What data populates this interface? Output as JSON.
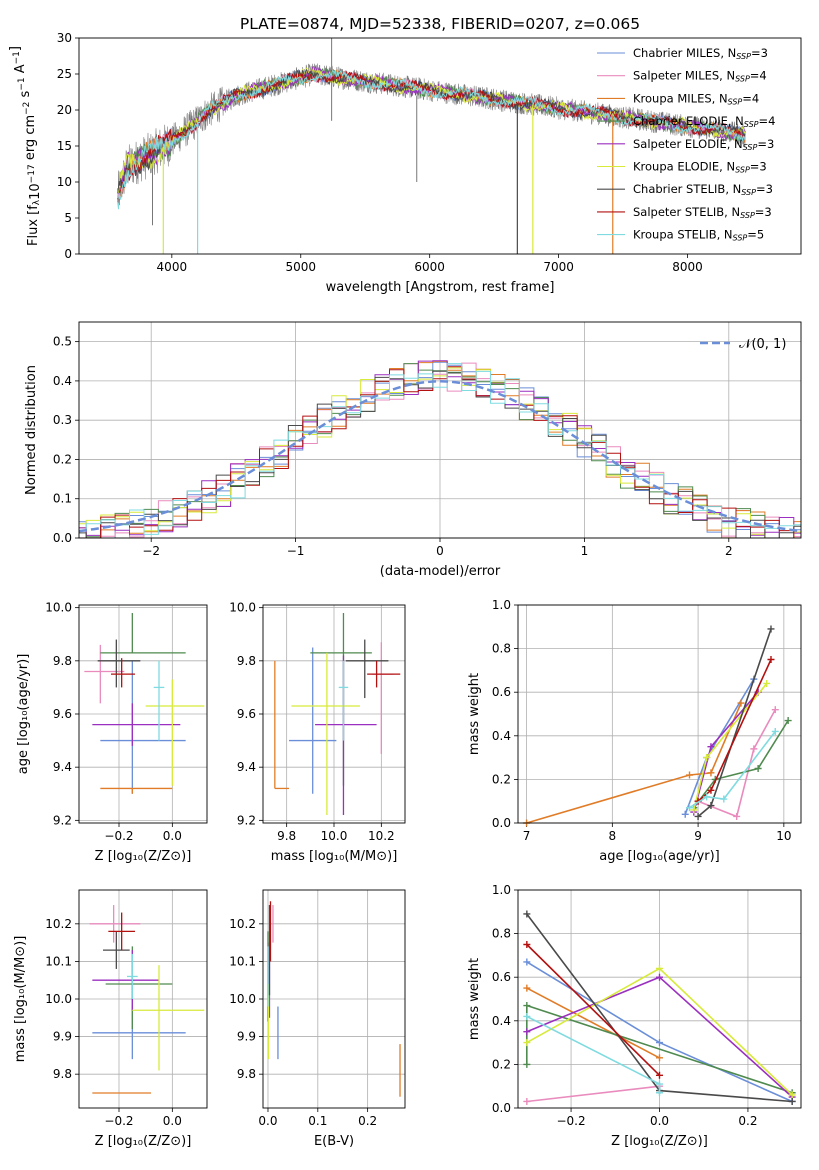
{
  "colors": {
    "Chabrier MILES": "#6a8ed8",
    "Salpeter MILES": "#e98bbd",
    "Kroupa MILES": "#e07c27",
    "Chabrier ELODIE": "#4f8a4f",
    "Salpeter ELODIE": "#9b2fbf",
    "Kroupa ELODIE": "#d8ea3a",
    "Chabrier STELIB": "#4a4a4a",
    "Salpeter STELIB": "#b31010",
    "Kroupa STELIB": "#7fdbe0"
  },
  "chart_data": [
    {
      "id": "spectrum",
      "type": "line",
      "title": "PLATE=0874, MJD=52338, FIBERID=0207, z=0.065",
      "xlabel": "wavelength [Angstrom, rest frame]",
      "ylabel": "Flux [fλ10⁻¹⁷ erg cm⁻² s⁻¹ A⁻¹]",
      "xlim": [
        3280,
        8880
      ],
      "ylim": [
        0,
        30
      ],
      "xticks": [
        4000,
        5000,
        6000,
        7000,
        8000
      ],
      "yticks": [
        0,
        5,
        10,
        15,
        20,
        25,
        30
      ],
      "legend_position": "top-right",
      "legend": [
        {
          "model": "Chabrier MILES",
          "label": "Chabrier MILES, N",
          "sub": "SSP",
          "n": "=3"
        },
        {
          "model": "Salpeter MILES",
          "label": "Salpeter MILES, N",
          "sub": "SSP",
          "n": "=4"
        },
        {
          "model": "Kroupa MILES",
          "label": "Kroupa MILES, N",
          "sub": "SSP",
          "n": "=4"
        },
        {
          "model": "Chabrier ELODIE",
          "label": "Chabrier ELODIE, N",
          "sub": "SSP",
          "n": "=4"
        },
        {
          "model": "Salpeter ELODIE",
          "label": "Salpeter ELODIE, N",
          "sub": "SSP",
          "n": "=3"
        },
        {
          "model": "Kroupa ELODIE",
          "label": "Kroupa ELODIE, N",
          "sub": "SSP",
          "n": "=3"
        },
        {
          "model": "Chabrier STELIB",
          "label": "Chabrier STELIB, N",
          "sub": "SSP",
          "n": "=3"
        },
        {
          "model": "Salpeter STELIB",
          "label": "Salpeter STELIB, N",
          "sub": "SSP",
          "n": "=3"
        },
        {
          "model": "Kroupa STELIB",
          "label": "Kroupa STELIB, N",
          "sub": "SSP",
          "n": "=5"
        }
      ],
      "continuum": [
        [
          3580,
          8
        ],
        [
          3650,
          12
        ],
        [
          3750,
          13
        ],
        [
          3850,
          14
        ],
        [
          3950,
          15
        ],
        [
          4100,
          17
        ],
        [
          4300,
          20
        ],
        [
          4500,
          22
        ],
        [
          4700,
          23
        ],
        [
          4900,
          24
        ],
        [
          5100,
          25
        ],
        [
          5300,
          24.5
        ],
        [
          5500,
          24
        ],
        [
          5700,
          23.5
        ],
        [
          5900,
          23
        ],
        [
          6100,
          22.5
        ],
        [
          6300,
          22
        ],
        [
          6500,
          21.5
        ],
        [
          6700,
          21
        ],
        [
          6900,
          20.5
        ],
        [
          7100,
          20
        ],
        [
          7300,
          19.5
        ],
        [
          7500,
          19
        ],
        [
          7700,
          18.5
        ],
        [
          7900,
          18
        ],
        [
          8100,
          17.5
        ],
        [
          8300,
          17
        ],
        [
          8450,
          16.5
        ]
      ],
      "dips": [
        {
          "x": 3934,
          "y": 0,
          "model": "Kroupa ELODIE"
        },
        {
          "x": 4200,
          "y": 0,
          "model": "Kroupa STELIB"
        },
        {
          "x": 6680,
          "y": 0,
          "model": "Chabrier STELIB"
        },
        {
          "x": 6800,
          "y": 0,
          "model": "Kroupa ELODIE"
        },
        {
          "x": 7420,
          "y": 0,
          "model": "Kroupa MILES"
        }
      ]
    },
    {
      "id": "residuals",
      "type": "histogram",
      "xlabel": "(data-model)/error",
      "ylabel": "Normed distribution",
      "xlim": [
        -2.5,
        2.5
      ],
      "ylim": [
        0,
        0.55
      ],
      "xticks": [
        -2,
        -1,
        0,
        1,
        2
      ],
      "yticks": [
        0.0,
        0.1,
        0.2,
        0.3,
        0.4,
        0.5
      ],
      "legend": "𝒩(0, 1)",
      "legend_position": "top-right",
      "reference_curve": {
        "mean": 0,
        "sigma": 1,
        "style": "dashed"
      },
      "bin_width": 0.1
    },
    {
      "id": "age-vs-Z",
      "type": "errorbar",
      "xlabel": "Z [log₁₀(Z/Z⊙)]",
      "ylabel": "age  [log₁₀(age/yr)]",
      "xlim": [
        -0.35,
        0.13
      ],
      "ylim": [
        9.19,
        10.01
      ],
      "xticks": [
        -0.2,
        0.0
      ],
      "yticks": [
        9.2,
        9.4,
        9.6,
        9.8,
        10.0
      ],
      "points": [
        {
          "model": "Chabrier MILES",
          "x": -0.15,
          "xerr": [
            0.12,
            0.2
          ],
          "y": 9.5,
          "yerr": [
            0.2,
            0.3
          ]
        },
        {
          "model": "Salpeter MILES",
          "x": -0.27,
          "xerr": [
            0.06,
            0.09
          ],
          "y": 9.76,
          "yerr": [
            0.12,
            0.1
          ]
        },
        {
          "model": "Kroupa MILES",
          "x": -0.15,
          "xerr": [
            0.12,
            0.15
          ],
          "y": 9.32,
          "yerr": [
            0.02,
            0.0
          ]
        },
        {
          "model": "Chabrier ELODIE",
          "x": -0.15,
          "xerr": [
            0.12,
            0.2
          ],
          "y": 9.83,
          "yerr": [
            0.0,
            0.15
          ]
        },
        {
          "model": "Salpeter ELODIE",
          "x": -0.15,
          "xerr": [
            0.15,
            0.18
          ],
          "y": 9.56,
          "yerr": [
            0.08,
            0.08
          ]
        },
        {
          "model": "Kroupa ELODIE",
          "x": 0.0,
          "xerr": [
            0.1,
            0.12
          ],
          "y": 9.63,
          "yerr": [
            0.3,
            0.1
          ]
        },
        {
          "model": "Chabrier STELIB",
          "x": -0.21,
          "xerr": [
            0.07,
            0.09
          ],
          "y": 9.8,
          "yerr": [
            0.1,
            0.08
          ]
        },
        {
          "model": "Salpeter STELIB",
          "x": -0.19,
          "xerr": [
            0.04,
            0.05
          ],
          "y": 9.75,
          "yerr": [
            0.05,
            0.06
          ]
        },
        {
          "model": "Kroupa STELIB",
          "x": -0.05,
          "xerr": [
            0.02,
            0.02
          ],
          "y": 9.7,
          "yerr": [
            0.2,
            0.1
          ]
        }
      ]
    },
    {
      "id": "age-vs-mass",
      "type": "errorbar",
      "xlabel": "mass [log₁₀(M/M⊙)]",
      "ylabel": "",
      "xlim": [
        9.7,
        10.3
      ],
      "ylim": [
        9.19,
        10.01
      ],
      "xticks": [
        9.8,
        10.0,
        10.2
      ],
      "yticks": [
        9.2,
        9.4,
        9.6,
        9.8,
        10.0
      ],
      "points": [
        {
          "model": "Chabrier MILES",
          "x": 9.91,
          "xerr": [
            0.1,
            0.1
          ],
          "y": 9.5,
          "yerr": [
            0.2,
            0.35
          ]
        },
        {
          "model": "Salpeter MILES",
          "x": 10.2,
          "xerr": [
            0.04,
            0.05
          ],
          "y": 9.75,
          "yerr": [
            0.3,
            0.12
          ]
        },
        {
          "model": "Kroupa MILES",
          "x": 9.75,
          "xerr": [
            0.0,
            0.06
          ],
          "y": 9.32,
          "yerr": [
            0.0,
            0.48
          ]
        },
        {
          "model": "Chabrier ELODIE",
          "x": 10.04,
          "xerr": [
            0.14,
            0.12
          ],
          "y": 9.83,
          "yerr": [
            0.5,
            0.15
          ]
        },
        {
          "model": "Salpeter ELODIE",
          "x": 10.04,
          "xerr": [
            0.12,
            0.14
          ],
          "y": 9.56,
          "yerr": [
            0.34,
            0.26
          ]
        },
        {
          "model": "Kroupa ELODIE",
          "x": 9.97,
          "xerr": [
            0.15,
            0.14
          ],
          "y": 9.63,
          "yerr": [
            0.41,
            0.2
          ]
        },
        {
          "model": "Chabrier STELIB",
          "x": 10.13,
          "xerr": [
            0.08,
            0.1
          ],
          "y": 9.8,
          "yerr": [
            0.14,
            0.08
          ]
        },
        {
          "model": "Salpeter STELIB",
          "x": 10.18,
          "xerr": [
            0.04,
            0.1
          ],
          "y": 9.75,
          "yerr": [
            0.05,
            0.05
          ]
        },
        {
          "model": "Kroupa STELIB",
          "x": 10.04,
          "xerr": [
            0.02,
            0.02
          ],
          "y": 9.7,
          "yerr": [
            0.2,
            0.1
          ]
        }
      ]
    },
    {
      "id": "massweight-vs-age",
      "type": "line",
      "xlabel": "age  [log₁₀(age/yr)]",
      "ylabel": "mass weight",
      "xlim": [
        6.9,
        10.2
      ],
      "ylim": [
        0,
        1.0
      ],
      "xticks": [
        7,
        8,
        9,
        10
      ],
      "yticks": [
        0.0,
        0.2,
        0.4,
        0.6,
        0.8,
        1.0
      ],
      "series": [
        {
          "model": "Chabrier MILES",
          "x": [
            8.85,
            9.1,
            9.65
          ],
          "y": [
            0.04,
            0.3,
            0.66
          ]
        },
        {
          "model": "Salpeter MILES",
          "x": [
            9.0,
            9.45,
            9.65,
            9.9
          ],
          "y": [
            0.1,
            0.03,
            0.34,
            0.52
          ]
        },
        {
          "model": "Kroupa MILES",
          "x": [
            7.0,
            8.9,
            9.15,
            9.5
          ],
          "y": [
            0.0,
            0.22,
            0.23,
            0.55
          ]
        },
        {
          "model": "Chabrier ELODIE",
          "x": [
            8.95,
            9.2,
            9.7,
            10.05
          ],
          "y": [
            0.07,
            0.2,
            0.25,
            0.47
          ]
        },
        {
          "model": "Salpeter ELODIE",
          "x": [
            8.95,
            9.15,
            9.7
          ],
          "y": [
            0.05,
            0.35,
            0.6
          ]
        },
        {
          "model": "Kroupa ELODIE",
          "x": [
            8.95,
            9.1,
            9.8
          ],
          "y": [
            0.06,
            0.3,
            0.64
          ]
        },
        {
          "model": "Chabrier STELIB",
          "x": [
            9.0,
            9.15,
            9.85
          ],
          "y": [
            0.03,
            0.08,
            0.89
          ]
        },
        {
          "model": "Salpeter STELIB",
          "x": [
            9.0,
            9.15,
            9.85
          ],
          "y": [
            0.1,
            0.15,
            0.75
          ]
        },
        {
          "model": "Kroupa STELIB",
          "x": [
            8.9,
            9.1,
            9.3,
            9.9
          ],
          "y": [
            0.07,
            0.12,
            0.11,
            0.42
          ]
        }
      ]
    },
    {
      "id": "mass-vs-Z",
      "type": "errorbar",
      "xlabel": "Z [log₁₀(Z/Z⊙)]",
      "ylabel": "mass [log₁₀(M/M⊙)]",
      "xlim": [
        -0.35,
        0.13
      ],
      "ylim": [
        9.71,
        10.29
      ],
      "xticks": [
        -0.2,
        0.0
      ],
      "yticks": [
        9.8,
        9.9,
        10.0,
        10.1,
        10.2
      ],
      "points": [
        {
          "model": "Chabrier MILES",
          "x": -0.15,
          "xerr": [
            0.15,
            0.2
          ],
          "y": 9.91,
          "yerr": [
            0.07,
            0.07
          ]
        },
        {
          "model": "Salpeter MILES",
          "x": -0.22,
          "xerr": [
            0.09,
            0.1
          ],
          "y": 10.2,
          "yerr": [
            0.05,
            0.05
          ]
        },
        {
          "model": "Kroupa MILES",
          "x": -0.2,
          "xerr": [
            0.1,
            0.12
          ],
          "y": 9.75,
          "yerr": [
            0.0,
            0.0
          ]
        },
        {
          "model": "Chabrier ELODIE",
          "x": -0.15,
          "xerr": [
            0.1,
            0.15
          ],
          "y": 10.04,
          "yerr": [
            0.12,
            0.1
          ]
        },
        {
          "model": "Salpeter ELODIE",
          "x": -0.15,
          "xerr": [
            0.15,
            0.1
          ],
          "y": 10.05,
          "yerr": [
            0.08,
            0.08
          ]
        },
        {
          "model": "Kroupa ELODIE",
          "x": -0.05,
          "xerr": [
            0.1,
            0.17
          ],
          "y": 9.97,
          "yerr": [
            0.16,
            0.12
          ]
        },
        {
          "model": "Chabrier STELIB",
          "x": -0.21,
          "xerr": [
            0.05,
            0.05
          ],
          "y": 10.13,
          "yerr": [
            0.05,
            0.05
          ]
        },
        {
          "model": "Salpeter STELIB",
          "x": -0.19,
          "xerr": [
            0.05,
            0.05
          ],
          "y": 10.18,
          "yerr": [
            0.05,
            0.05
          ]
        },
        {
          "model": "Kroupa STELIB",
          "x": -0.15,
          "xerr": [
            0.02,
            0.02
          ],
          "y": 10.06,
          "yerr": [
            0.06,
            0.06
          ]
        }
      ]
    },
    {
      "id": "mass-vs-ebv",
      "type": "errorbar",
      "xlabel": "E(B-V)",
      "ylabel": "",
      "xlim": [
        -0.01,
        0.275
      ],
      "ylim": [
        9.71,
        10.29
      ],
      "xticks": [
        0.0,
        0.1,
        0.2
      ],
      "yticks": [
        9.8,
        9.9,
        10.0,
        10.1,
        10.2
      ],
      "points": [
        {
          "model": "Chabrier MILES",
          "x": 0.02,
          "xerr": [
            0,
            0
          ],
          "y": 9.91,
          "yerr": [
            0.07,
            0.07
          ]
        },
        {
          "model": "Salpeter MILES",
          "x": 0.01,
          "xerr": [
            0,
            0
          ],
          "y": 10.2,
          "yerr": [
            0.05,
            0.05
          ]
        },
        {
          "model": "Kroupa MILES",
          "x": 0.265,
          "xerr": [
            0,
            0
          ],
          "y": 9.81,
          "yerr": [
            0.07,
            0.07
          ]
        },
        {
          "model": "Chabrier ELODIE",
          "x": 0.0,
          "xerr": [
            0,
            0
          ],
          "y": 10.06,
          "yerr": [
            0.12,
            0.12
          ]
        },
        {
          "model": "Salpeter ELODIE",
          "x": 0.003,
          "xerr": [
            0,
            0
          ],
          "y": 10.05,
          "yerr": [
            0.1,
            0.1
          ]
        },
        {
          "model": "Kroupa ELODIE",
          "x": 0.001,
          "xerr": [
            0,
            0
          ],
          "y": 9.94,
          "yerr": [
            0.1,
            0.1
          ]
        },
        {
          "model": "Chabrier STELIB",
          "x": 0.003,
          "xerr": [
            0,
            0
          ],
          "y": 10.13,
          "yerr": [
            0.12,
            0.12
          ]
        },
        {
          "model": "Salpeter STELIB",
          "x": 0.005,
          "xerr": [
            0,
            0
          ],
          "y": 10.18,
          "yerr": [
            0.08,
            0.08
          ]
        },
        {
          "model": "Kroupa STELIB",
          "x": 0.0,
          "xerr": [
            0,
            0
          ],
          "y": 10.06,
          "yerr": [
            0.08,
            0.08
          ]
        }
      ]
    },
    {
      "id": "massweight-vs-Z",
      "type": "line",
      "xlabel": "Z [log₁₀(Z/Z⊙)]",
      "ylabel": "mass weight",
      "xlim": [
        -0.32,
        0.32
      ],
      "ylim": [
        0,
        1.0
      ],
      "xticks": [
        -0.2,
        0.0,
        0.2
      ],
      "yticks": [
        0.0,
        0.2,
        0.4,
        0.6,
        0.8,
        1.0
      ],
      "series": [
        {
          "model": "Chabrier MILES",
          "x": [
            -0.3,
            0.0,
            0.3
          ],
          "y": [
            0.67,
            0.3,
            0.03
          ]
        },
        {
          "model": "Salpeter MILES",
          "x": [
            -0.3,
            0.0
          ],
          "y": [
            0.03,
            0.1
          ]
        },
        {
          "model": "Kroupa MILES",
          "x": [
            -0.3,
            0.0
          ],
          "y": [
            0.55,
            0.23
          ]
        },
        {
          "model": "Chabrier ELODIE",
          "x": [
            -0.3,
            -0.3,
            0.3
          ],
          "y": [
            0.2,
            0.47,
            0.07
          ]
        },
        {
          "model": "Salpeter ELODIE",
          "x": [
            -0.3,
            0.0,
            0.3
          ],
          "y": [
            0.35,
            0.6,
            0.05
          ]
        },
        {
          "model": "Kroupa ELODIE",
          "x": [
            -0.3,
            0.0,
            0.3
          ],
          "y": [
            0.3,
            0.64,
            0.06
          ]
        },
        {
          "model": "Chabrier STELIB",
          "x": [
            -0.3,
            0.0,
            0.3
          ],
          "y": [
            0.89,
            0.08,
            0.03
          ]
        },
        {
          "model": "Salpeter STELIB",
          "x": [
            -0.3,
            0.0
          ],
          "y": [
            0.75,
            0.15
          ]
        },
        {
          "model": "Kroupa STELIB",
          "x": [
            -0.3,
            0.0,
            0.0
          ],
          "y": [
            0.42,
            0.11,
            0.07
          ]
        }
      ]
    }
  ]
}
